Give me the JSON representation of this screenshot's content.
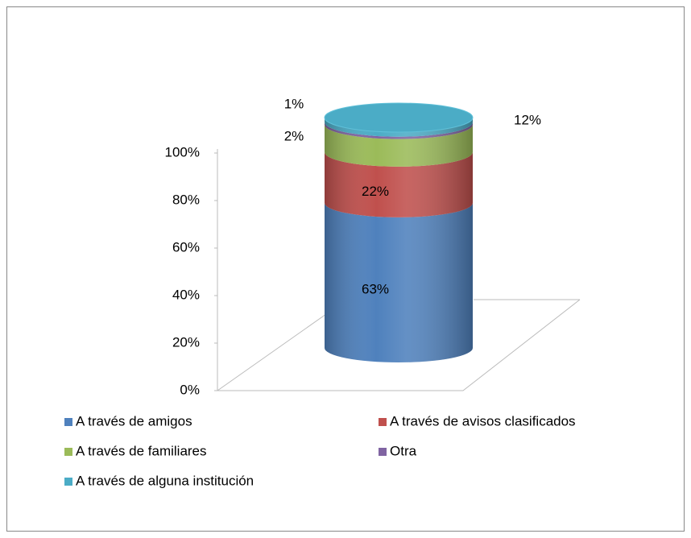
{
  "chart_data": {
    "type": "cylinder-stacked",
    "categories": [
      null
    ],
    "series": [
      {
        "name": "A través de amigos",
        "color": "#4f81bd",
        "values": [
          63
        ],
        "value_labels": [
          "63%"
        ]
      },
      {
        "name": "A través de avisos clasificados",
        "color": "#c0504d",
        "values": [
          22
        ],
        "value_labels": [
          "22%"
        ]
      },
      {
        "name": "A través de familiares",
        "color": "#9bbb59",
        "values": [
          12
        ],
        "value_labels": [
          "12%"
        ]
      },
      {
        "name": "Otra",
        "color": "#8064a2",
        "values": [
          1
        ],
        "value_labels": [
          "1%"
        ]
      },
      {
        "name": "A través de alguna institución",
        "color": "#4bacc6",
        "values": [
          2
        ],
        "value_labels": [
          "2%"
        ]
      }
    ],
    "ylim": [
      0,
      100
    ],
    "yticks": [
      {
        "value": 0,
        "label": "0%"
      },
      {
        "value": 20,
        "label": "20%"
      },
      {
        "value": 40,
        "label": "40%"
      },
      {
        "value": 60,
        "label": "60%"
      },
      {
        "value": 80,
        "label": "80%"
      },
      {
        "value": 100,
        "label": "100%"
      }
    ],
    "legend": "bottom"
  }
}
